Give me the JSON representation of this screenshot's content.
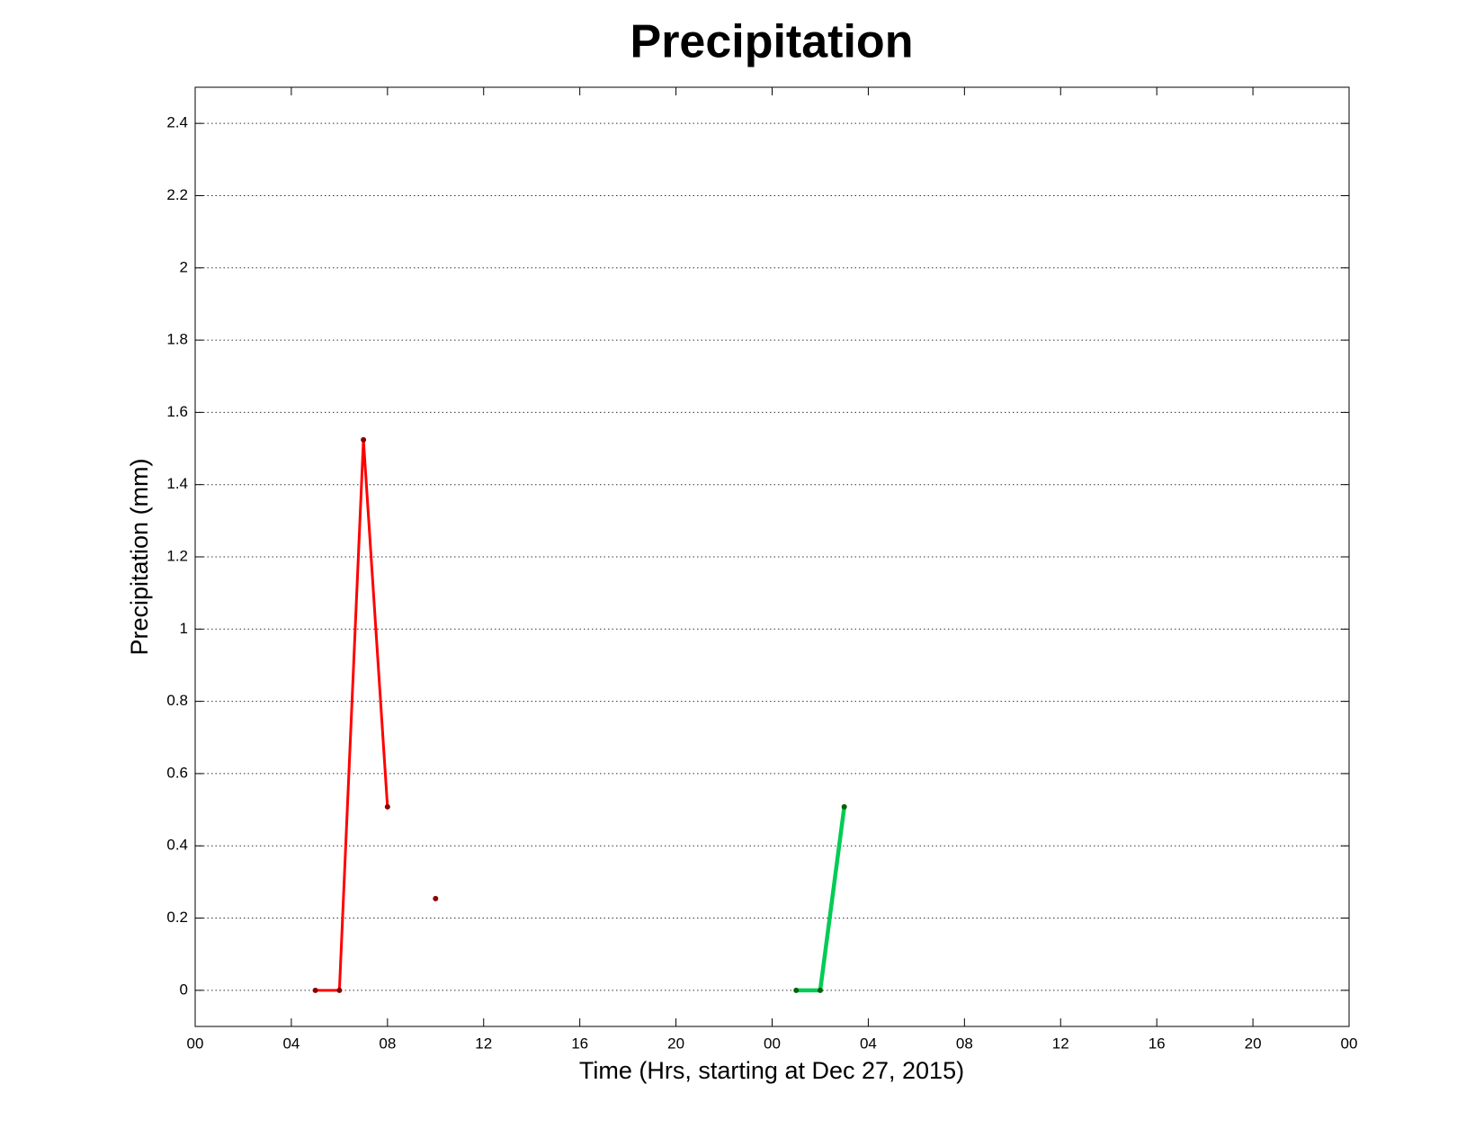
{
  "chart_data": {
    "type": "line",
    "title": "Precipitation",
    "x_label": "Time (Hrs, starting at Dec 27, 2015)",
    "y_label": "Precipitation (mm)",
    "xlim": [
      0,
      48
    ],
    "xticks": [
      {
        "value": 0,
        "label": "00"
      },
      {
        "value": 4,
        "label": "04"
      },
      {
        "value": 8,
        "label": "08"
      },
      {
        "value": 12,
        "label": "12"
      },
      {
        "value": 16,
        "label": "16"
      },
      {
        "value": 20,
        "label": "20"
      },
      {
        "value": 24,
        "label": "00"
      },
      {
        "value": 28,
        "label": "04"
      },
      {
        "value": 32,
        "label": "08"
      },
      {
        "value": 36,
        "label": "12"
      },
      {
        "value": 40,
        "label": "16"
      },
      {
        "value": 44,
        "label": "20"
      },
      {
        "value": 48,
        "label": "00"
      }
    ],
    "ylim": [
      -0.1,
      2.5
    ],
    "yticks": [
      0,
      0.2,
      0.4,
      0.6,
      0.8,
      1,
      1.2,
      1.4,
      1.6,
      1.8,
      2,
      2.2,
      2.4
    ],
    "grid": true,
    "series": [
      {
        "color": "#ff0000",
        "marker_color": "#8b0000",
        "line_width": 3,
        "x": [
          5,
          6,
          7,
          8,
          9,
          10
        ],
        "values": [
          0,
          0,
          1.524,
          0.508,
          null,
          0.254
        ]
      },
      {
        "color": "#00cc55",
        "marker_color": "#006400",
        "line_width": 4.5,
        "x": [
          25,
          26,
          27
        ],
        "values": [
          0,
          0,
          0.508
        ]
      }
    ]
  }
}
